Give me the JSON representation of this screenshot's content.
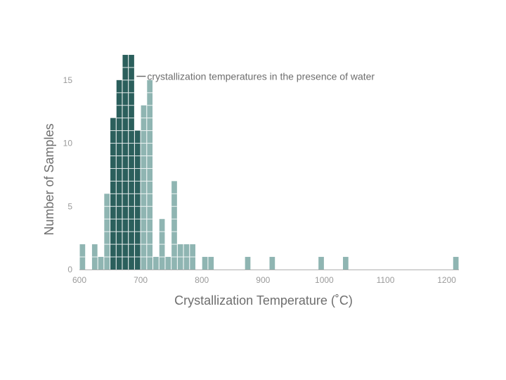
{
  "chart_data": {
    "type": "bar",
    "title": "",
    "xlabel": "Crystallization Temperature (˚C)",
    "ylabel": "Number of Samples",
    "xlim": [
      600,
      1220
    ],
    "ylim": [
      0,
      18
    ],
    "x_ticks": [
      "600",
      "700",
      "800",
      "900",
      "1000",
      "1100",
      "1200"
    ],
    "y_ticks": [
      "0",
      "5",
      "10",
      "15"
    ],
    "bin_width": 10,
    "grid": false,
    "annotation": "crystallization temperatures in the presence of water",
    "colors": {
      "light": "#8fb5b2",
      "dark": "#2b5f5c",
      "axis": "#b0b0b0"
    },
    "series": [
      {
        "name": "crystallization temperatures in the presence of water",
        "color": "#2b5f5c",
        "bins": [
          {
            "x": 650,
            "value": 12
          },
          {
            "x": 660,
            "value": 15
          },
          {
            "x": 670,
            "value": 17
          },
          {
            "x": 680,
            "value": 17
          },
          {
            "x": 690,
            "value": 11
          }
        ]
      },
      {
        "name": "",
        "color": "#8fb5b2",
        "bins": [
          {
            "x": 600,
            "value": 2
          },
          {
            "x": 620,
            "value": 2
          },
          {
            "x": 630,
            "value": 1
          },
          {
            "x": 640,
            "value": 6
          },
          {
            "x": 700,
            "value": 13
          },
          {
            "x": 710,
            "value": 15
          },
          {
            "x": 720,
            "value": 1
          },
          {
            "x": 730,
            "value": 4
          },
          {
            "x": 740,
            "value": 1
          },
          {
            "x": 750,
            "value": 7
          },
          {
            "x": 760,
            "value": 2
          },
          {
            "x": 770,
            "value": 2
          },
          {
            "x": 780,
            "value": 2
          },
          {
            "x": 800,
            "value": 1
          },
          {
            "x": 810,
            "value": 1
          },
          {
            "x": 870,
            "value": 1
          },
          {
            "x": 910,
            "value": 1
          },
          {
            "x": 990,
            "value": 1
          },
          {
            "x": 1030,
            "value": 1
          },
          {
            "x": 1210,
            "value": 1
          }
        ]
      }
    ]
  }
}
